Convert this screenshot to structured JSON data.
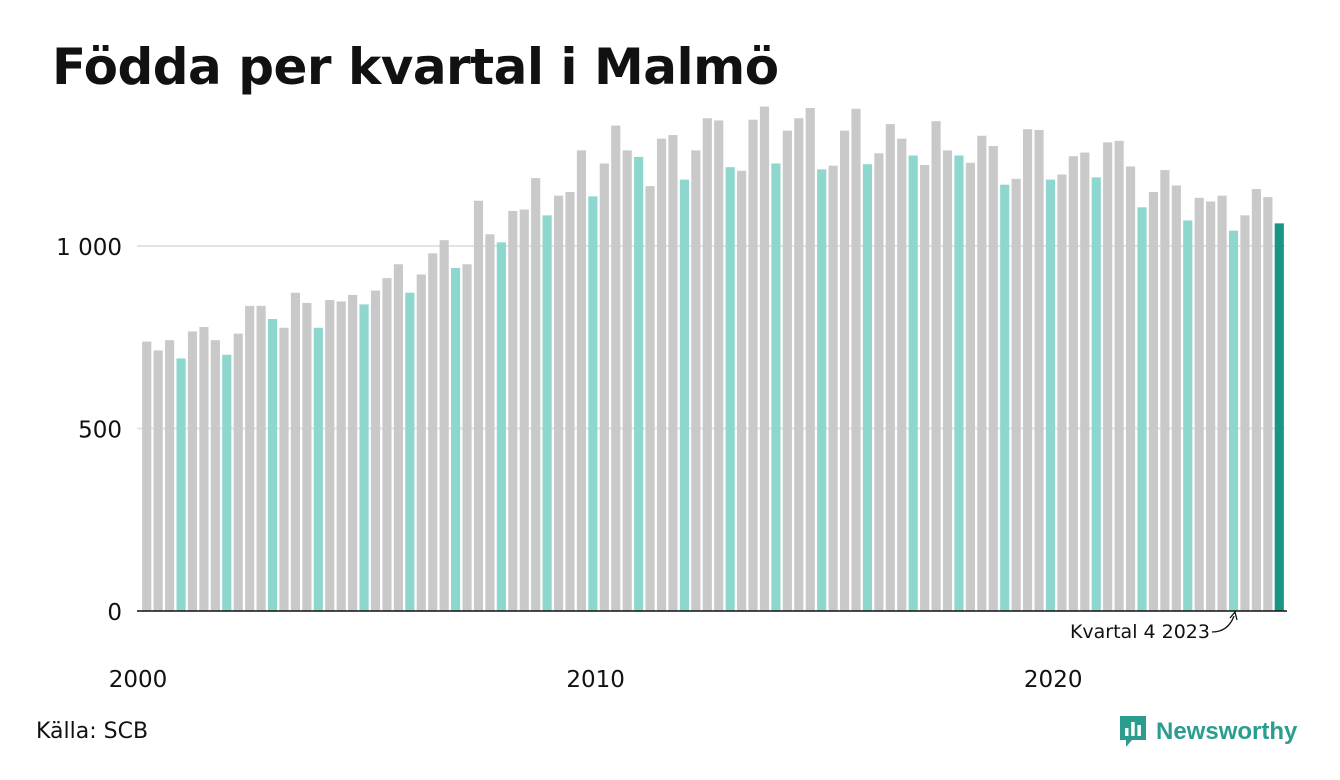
{
  "title": "Födda per kvartal i Malmö",
  "source": "Källa: SCB",
  "brand": "Newsworthy",
  "colors": {
    "bar_default": "#c9c9c9",
    "bar_q4": "#8dd7cf",
    "bar_latest": "#1a9484",
    "gridline": "#e3e3e3",
    "axis": "#111111",
    "brand": "#2a9d8f"
  },
  "chart_data": {
    "type": "bar",
    "ylim": [
      0,
      1400
    ],
    "y_ticks": [
      {
        "value": 0,
        "label": "0"
      },
      {
        "value": 500,
        "label": "500"
      },
      {
        "value": 1000,
        "label": "1 000"
      }
    ],
    "x_ticks": [
      {
        "year": 2000,
        "label": "2000"
      },
      {
        "year": 2010,
        "label": "2010"
      },
      {
        "year": 2020,
        "label": "2020"
      }
    ],
    "grid": "horizontal",
    "highlight": "quarter 4 bars shown in teal, latest bar in dark teal",
    "annotation": {
      "label": "Kvartal 4 2023",
      "target": "2023 Q4"
    },
    "series": [
      {
        "values": [
          738,
          714,
          742,
          692,
          766,
          778,
          742,
          702,
          760,
          836,
          836,
          800,
          776,
          872,
          844,
          776,
          852,
          848,
          866,
          840,
          878,
          912,
          950,
          872,
          922,
          980,
          1016,
          940,
          950,
          1124,
          1032,
          1010,
          1096,
          1100,
          1186,
          1084,
          1138,
          1148,
          1262,
          1136,
          1226,
          1330,
          1262,
          1244,
          1164,
          1294,
          1304,
          1182,
          1262,
          1350,
          1344,
          1216,
          1206,
          1346,
          1382,
          1226,
          1316,
          1350,
          1378,
          1210,
          1220,
          1316,
          1376,
          1224,
          1254,
          1334,
          1294,
          1248,
          1222,
          1342,
          1262,
          1248,
          1228,
          1302,
          1274,
          1168,
          1184,
          1320,
          1318,
          1182,
          1196,
          1246,
          1256,
          1188,
          1284,
          1288,
          1218,
          1106,
          1148,
          1208,
          1166,
          1070,
          1132,
          1122,
          1138,
          1042,
          1084,
          1156,
          1134,
          1062
        ]
      }
    ]
  }
}
